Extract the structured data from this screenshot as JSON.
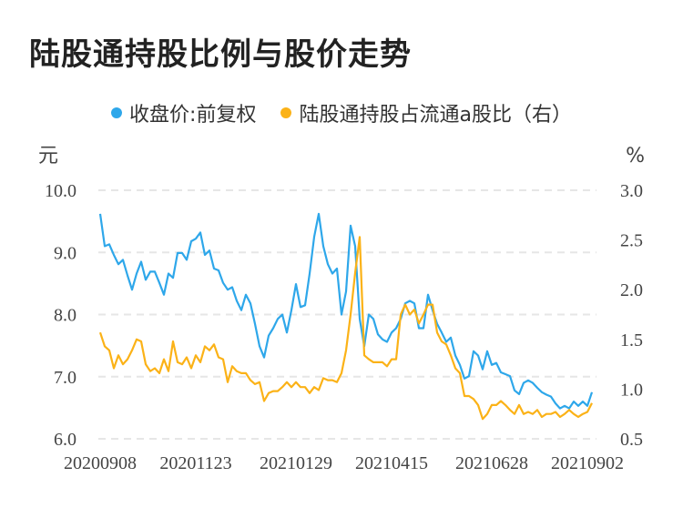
{
  "title": "陆股通持股比例与股价走势",
  "colors": {
    "price": "#2ea7ea",
    "ratio": "#fbb217",
    "grid": "#e6e6e6"
  },
  "chart_data": {
    "type": "line",
    "title": "陆股通持股比例与股价走势",
    "left_axis": {
      "unit": "元",
      "ticks": [
        "10.0",
        "9.0",
        "8.0",
        "7.0",
        "6.0"
      ],
      "ylim": [
        6.0,
        10.0
      ]
    },
    "right_axis": {
      "unit": "%",
      "ticks": [
        "3.0",
        "2.5",
        "2.0",
        "1.5",
        "1.0",
        "0.5"
      ],
      "ylim": [
        0.5,
        3.0
      ]
    },
    "x_ticks": [
      {
        "index": 0,
        "label": "20200908"
      },
      {
        "index": 21,
        "label": "20201123"
      },
      {
        "index": 43,
        "label": "20210129"
      },
      {
        "index": 64,
        "label": "20210415"
      },
      {
        "index": 86,
        "label": "20210628"
      },
      {
        "index": 107,
        "label": "20210902"
      }
    ],
    "grid": true,
    "legend_position": "top",
    "series": [
      {
        "name": "收盘价:前复权",
        "axis": "left",
        "values": [
          9.62,
          9.1,
          9.13,
          8.96,
          8.81,
          8.88,
          8.63,
          8.4,
          8.66,
          8.85,
          8.56,
          8.69,
          8.69,
          8.51,
          8.32,
          8.66,
          8.59,
          8.99,
          8.99,
          8.88,
          9.18,
          9.22,
          9.32,
          8.96,
          9.03,
          8.74,
          8.71,
          8.51,
          8.4,
          8.44,
          8.22,
          8.07,
          8.32,
          8.18,
          7.85,
          7.49,
          7.31,
          7.66,
          7.78,
          7.93,
          8.0,
          7.71,
          8.07,
          8.49,
          8.12,
          8.15,
          8.66,
          9.25,
          9.62,
          9.1,
          8.81,
          8.66,
          8.74,
          8.0,
          8.37,
          9.43,
          9.1,
          7.93,
          7.49,
          8.0,
          7.93,
          7.68,
          7.6,
          7.56,
          7.71,
          7.78,
          7.93,
          8.18,
          8.22,
          8.18,
          7.78,
          7.78,
          8.32,
          8.07,
          7.85,
          7.71,
          7.56,
          7.63,
          7.34,
          7.19,
          6.97,
          7.01,
          7.41,
          7.34,
          7.12,
          7.41,
          7.19,
          7.22,
          7.07,
          7.04,
          7.01,
          6.78,
          6.72,
          6.9,
          6.94,
          6.9,
          6.82,
          6.75,
          6.71,
          6.68,
          6.57,
          6.49,
          6.53,
          6.49,
          6.6,
          6.53,
          6.6,
          6.53,
          6.75
        ]
      },
      {
        "name": "陆股通持股占流通a股比（右）",
        "axis": "right",
        "values": [
          1.57,
          1.43,
          1.39,
          1.21,
          1.34,
          1.25,
          1.3,
          1.39,
          1.5,
          1.48,
          1.25,
          1.18,
          1.21,
          1.16,
          1.3,
          1.18,
          1.48,
          1.27,
          1.25,
          1.32,
          1.21,
          1.34,
          1.27,
          1.43,
          1.39,
          1.45,
          1.32,
          1.3,
          1.07,
          1.23,
          1.18,
          1.16,
          1.16,
          1.09,
          1.05,
          1.07,
          0.88,
          0.96,
          0.98,
          0.98,
          1.02,
          1.07,
          1.02,
          1.07,
          1.02,
          1.02,
          0.96,
          1.02,
          0.99,
          1.11,
          1.09,
          1.09,
          1.07,
          1.16,
          1.39,
          1.75,
          2.17,
          2.53,
          1.34,
          1.3,
          1.27,
          1.27,
          1.27,
          1.23,
          1.3,
          1.3,
          1.75,
          1.85,
          1.75,
          1.8,
          1.66,
          1.75,
          1.85,
          1.85,
          1.57,
          1.48,
          1.45,
          1.34,
          1.21,
          1.16,
          0.93,
          0.93,
          0.9,
          0.84,
          0.7,
          0.75,
          0.84,
          0.84,
          0.88,
          0.84,
          0.79,
          0.75,
          0.84,
          0.75,
          0.77,
          0.75,
          0.79,
          0.72,
          0.75,
          0.75,
          0.77,
          0.72,
          0.75,
          0.79,
          0.75,
          0.72,
          0.75,
          0.77,
          0.86
        ]
      }
    ]
  }
}
